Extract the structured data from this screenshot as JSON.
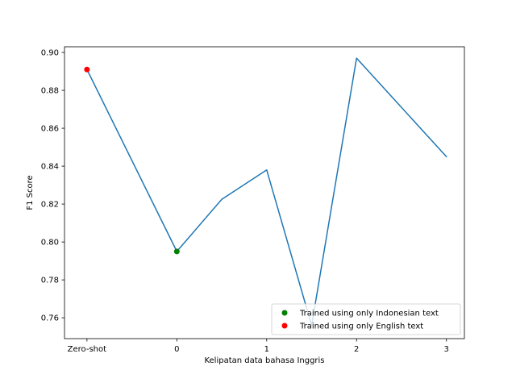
{
  "chart_data": {
    "type": "line",
    "title": "",
    "xlabel": "Kelipatan data bahasa Inggris",
    "ylabel": "F1 Score",
    "x": [
      0,
      1,
      1.5,
      2,
      2.5,
      3,
      4
    ],
    "x_tick_positions": [
      0,
      1,
      2,
      3,
      4
    ],
    "x_tick_labels": [
      "Zero-shot",
      "0",
      "1",
      "2",
      "3"
    ],
    "xlim": [
      -0.25,
      4.2
    ],
    "ylim": [
      0.749,
      0.903
    ],
    "y_ticks": [
      0.76,
      0.78,
      0.8,
      0.82,
      0.84,
      0.86,
      0.88,
      0.9
    ],
    "y_tick_labels": [
      "0.76",
      "0.78",
      "0.80",
      "0.82",
      "0.84",
      "0.86",
      "0.88",
      "0.90"
    ],
    "series": [
      {
        "values": [
          0.891,
          0.795,
          0.8225,
          0.838,
          0.756,
          0.897,
          0.845
        ],
        "color": "#1f77b4"
      }
    ],
    "markers": [
      {
        "label": "Trained using only Indonesian text",
        "x": 1,
        "y": 0.795,
        "color": "#008000"
      },
      {
        "label": "Trained using only English text",
        "x": 0,
        "y": 0.891,
        "color": "#ff0000"
      }
    ],
    "legend_position": "lower-right",
    "grid": false
  }
}
